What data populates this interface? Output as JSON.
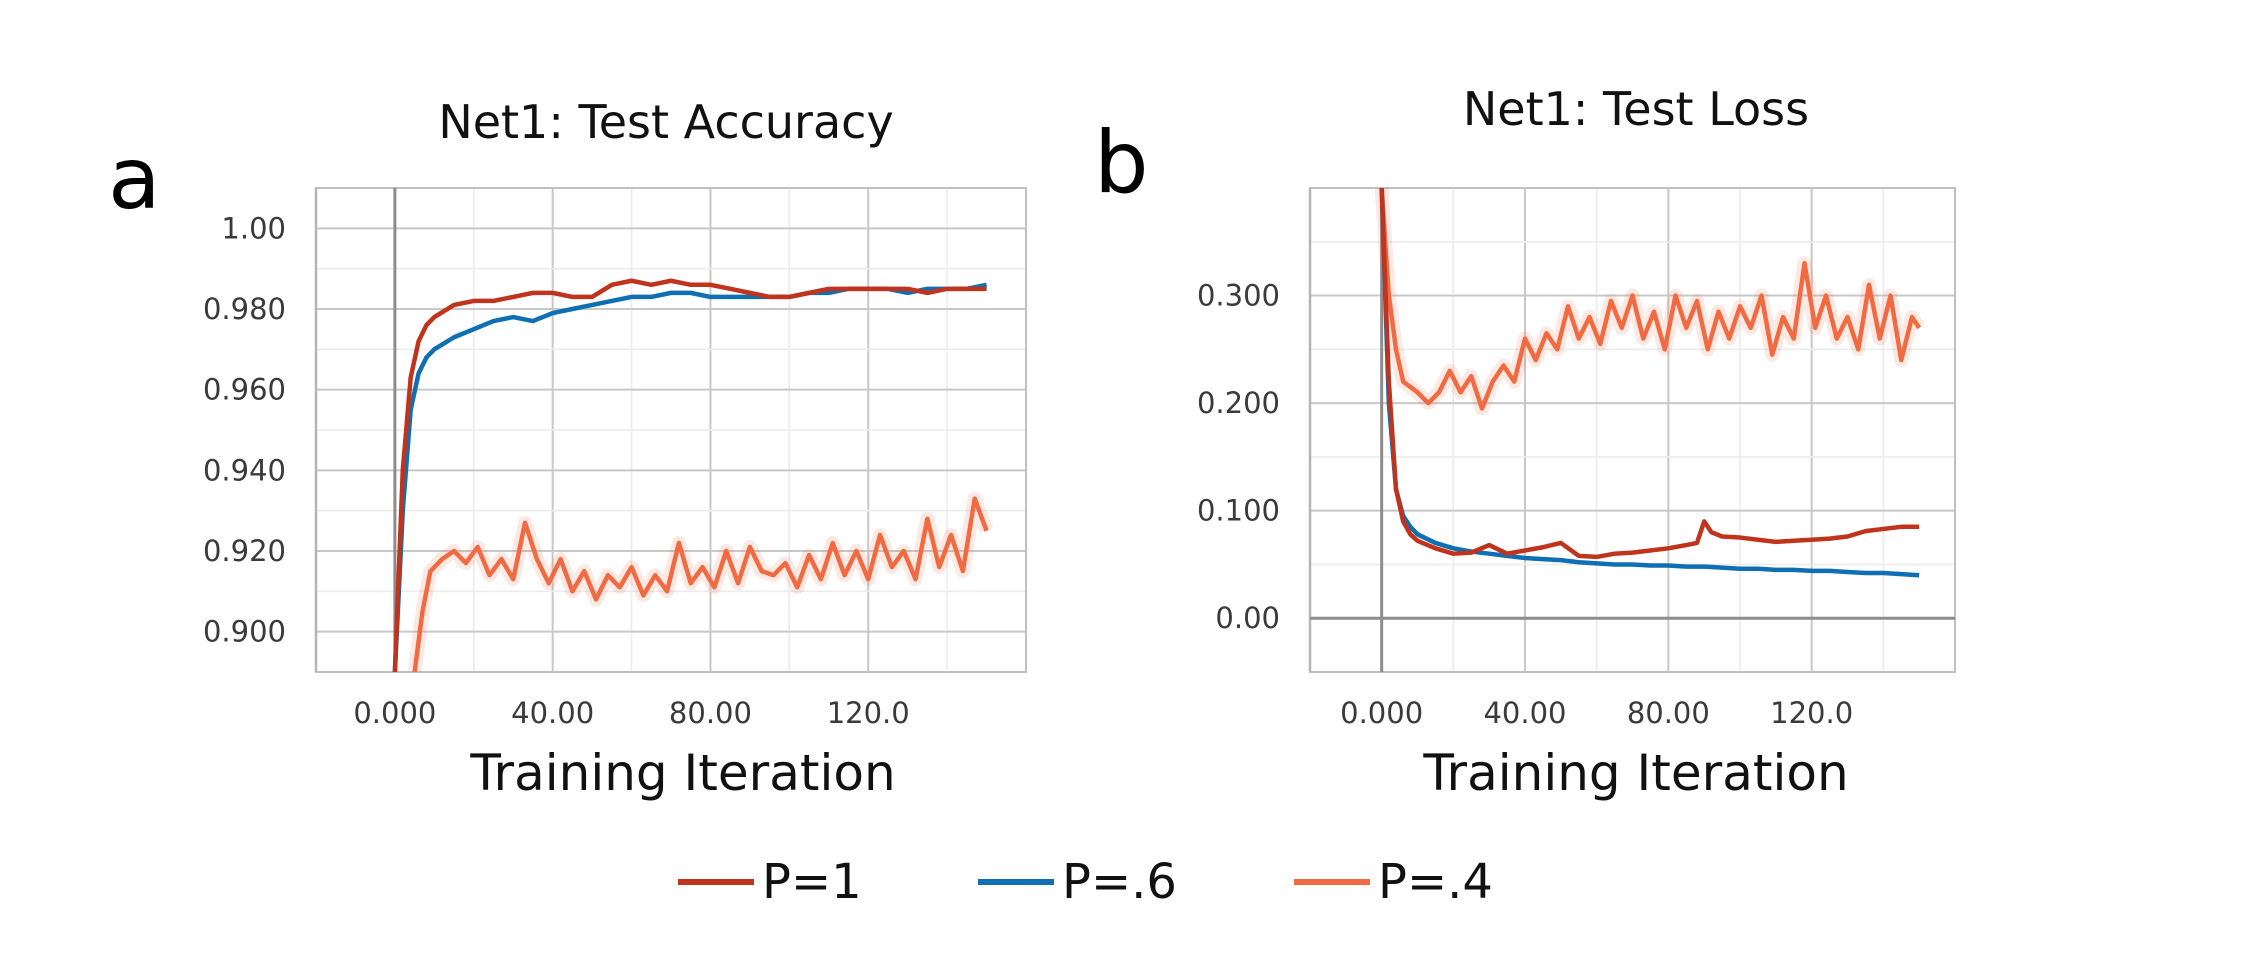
{
  "colors": {
    "p1": "#c0341d",
    "p6": "#0f6fb3",
    "p4": "#f26a41"
  },
  "legend": [
    {
      "label": "P=1",
      "color": "#c0341d"
    },
    {
      "label": "P=.6",
      "color": "#0f6fb3"
    },
    {
      "label": "P=.4",
      "color": "#f26a41"
    }
  ],
  "chart_data": [
    {
      "type": "line",
      "panel_label": "a",
      "title": "Net1: Test Accuracy",
      "xlabel": "Training Iteration",
      "ylabel": "",
      "xlim": [
        -20,
        160
      ],
      "ylim": [
        0.89,
        1.01
      ],
      "x_ticks": [
        0,
        40,
        80,
        120
      ],
      "x_tick_labels": [
        "0.000",
        "40.00",
        "80.00",
        "120.0"
      ],
      "y_ticks": [
        0.9,
        0.92,
        0.94,
        0.96,
        0.98,
        1.0
      ],
      "y_tick_labels": [
        "0.900",
        "0.920",
        "0.940",
        "0.960",
        "0.980",
        "1.00"
      ],
      "grid": true,
      "series": [
        {
          "name": "P=1",
          "color": "#c0341d",
          "x": [
            0,
            2,
            4,
            6,
            8,
            10,
            15,
            20,
            25,
            30,
            35,
            40,
            45,
            50,
            55,
            60,
            65,
            70,
            75,
            80,
            85,
            90,
            95,
            100,
            105,
            110,
            115,
            120,
            125,
            130,
            135,
            140,
            145,
            150
          ],
          "y": [
            0.89,
            0.94,
            0.963,
            0.972,
            0.976,
            0.978,
            0.981,
            0.982,
            0.982,
            0.983,
            0.984,
            0.984,
            0.983,
            0.983,
            0.986,
            0.987,
            0.986,
            0.987,
            0.986,
            0.986,
            0.985,
            0.984,
            0.983,
            0.983,
            0.984,
            0.985,
            0.985,
            0.985,
            0.985,
            0.985,
            0.984,
            0.985,
            0.985,
            0.985
          ]
        },
        {
          "name": "P=.6",
          "color": "#0f6fb3",
          "x": [
            0,
            2,
            4,
            6,
            8,
            10,
            15,
            20,
            25,
            30,
            35,
            40,
            45,
            50,
            55,
            60,
            65,
            70,
            75,
            80,
            85,
            90,
            95,
            100,
            105,
            110,
            115,
            120,
            125,
            130,
            135,
            140,
            145,
            150
          ],
          "y": [
            0.89,
            0.93,
            0.955,
            0.964,
            0.968,
            0.97,
            0.973,
            0.975,
            0.977,
            0.978,
            0.977,
            0.979,
            0.98,
            0.981,
            0.982,
            0.983,
            0.983,
            0.984,
            0.984,
            0.983,
            0.983,
            0.983,
            0.983,
            0.983,
            0.984,
            0.984,
            0.985,
            0.985,
            0.985,
            0.984,
            0.985,
            0.985,
            0.985,
            0.986
          ]
        },
        {
          "name": "P=.4",
          "color": "#f26a41",
          "x": [
            5,
            7,
            9,
            12,
            15,
            18,
            21,
            24,
            27,
            30,
            33,
            36,
            39,
            42,
            45,
            48,
            51,
            54,
            57,
            60,
            63,
            66,
            69,
            72,
            75,
            78,
            81,
            84,
            87,
            90,
            93,
            96,
            99,
            102,
            105,
            108,
            111,
            114,
            117,
            120,
            123,
            126,
            129,
            132,
            135,
            138,
            141,
            144,
            147,
            150
          ],
          "y": [
            0.89,
            0.905,
            0.915,
            0.918,
            0.92,
            0.917,
            0.921,
            0.914,
            0.918,
            0.913,
            0.927,
            0.918,
            0.912,
            0.918,
            0.91,
            0.915,
            0.908,
            0.914,
            0.911,
            0.916,
            0.909,
            0.914,
            0.91,
            0.922,
            0.912,
            0.916,
            0.911,
            0.92,
            0.912,
            0.921,
            0.915,
            0.914,
            0.917,
            0.911,
            0.919,
            0.913,
            0.922,
            0.914,
            0.92,
            0.913,
            0.924,
            0.916,
            0.92,
            0.913,
            0.928,
            0.916,
            0.924,
            0.915,
            0.933,
            0.925
          ]
        }
      ]
    },
    {
      "type": "line",
      "panel_label": "b",
      "title": "Net1: Test Loss",
      "xlabel": "Training Iteration",
      "ylabel": "",
      "xlim": [
        -20,
        160
      ],
      "ylim": [
        -0.05,
        0.4
      ],
      "x_ticks": [
        0,
        40,
        80,
        120
      ],
      "x_tick_labels": [
        "0.000",
        "40.00",
        "80.00",
        "120.0"
      ],
      "y_ticks": [
        0.0,
        0.1,
        0.2,
        0.3
      ],
      "y_tick_labels": [
        "0.00",
        "0.100",
        "0.200",
        "0.300"
      ],
      "grid": true,
      "series": [
        {
          "name": "P=1",
          "color": "#c0341d",
          "x": [
            0,
            2,
            4,
            6,
            8,
            10,
            15,
            20,
            25,
            30,
            35,
            40,
            45,
            50,
            55,
            60,
            65,
            70,
            75,
            80,
            85,
            88,
            90,
            92,
            95,
            100,
            105,
            110,
            115,
            120,
            125,
            130,
            135,
            140,
            145,
            150
          ],
          "y": [
            0.4,
            0.22,
            0.12,
            0.09,
            0.078,
            0.072,
            0.065,
            0.06,
            0.061,
            0.068,
            0.06,
            0.063,
            0.066,
            0.07,
            0.058,
            0.057,
            0.06,
            0.061,
            0.063,
            0.065,
            0.068,
            0.07,
            0.09,
            0.08,
            0.076,
            0.075,
            0.073,
            0.071,
            0.072,
            0.073,
            0.074,
            0.076,
            0.081,
            0.083,
            0.085,
            0.085
          ]
        },
        {
          "name": "P=.6",
          "color": "#0f6fb3",
          "x": [
            0,
            2,
            4,
            6,
            8,
            10,
            15,
            20,
            25,
            30,
            35,
            40,
            45,
            50,
            55,
            60,
            65,
            70,
            75,
            80,
            85,
            90,
            95,
            100,
            105,
            110,
            115,
            120,
            125,
            130,
            135,
            140,
            145,
            150
          ],
          "y": [
            0.4,
            0.2,
            0.12,
            0.095,
            0.085,
            0.078,
            0.07,
            0.065,
            0.062,
            0.06,
            0.058,
            0.056,
            0.055,
            0.054,
            0.052,
            0.051,
            0.05,
            0.05,
            0.049,
            0.049,
            0.048,
            0.048,
            0.047,
            0.046,
            0.046,
            0.045,
            0.045,
            0.044,
            0.044,
            0.043,
            0.042,
            0.042,
            0.041,
            0.04
          ]
        },
        {
          "name": "P=.4",
          "color": "#f26a41",
          "x": [
            0,
            2,
            4,
            6,
            8,
            10,
            13,
            16,
            19,
            22,
            25,
            28,
            31,
            34,
            37,
            40,
            43,
            46,
            49,
            52,
            55,
            58,
            61,
            64,
            67,
            70,
            73,
            76,
            79,
            82,
            85,
            88,
            91,
            94,
            97,
            100,
            103,
            106,
            109,
            112,
            115,
            118,
            121,
            124,
            127,
            130,
            133,
            136,
            139,
            142,
            145,
            148,
            150
          ],
          "y": [
            0.4,
            0.3,
            0.25,
            0.22,
            0.215,
            0.21,
            0.2,
            0.21,
            0.23,
            0.21,
            0.225,
            0.195,
            0.22,
            0.235,
            0.22,
            0.26,
            0.24,
            0.265,
            0.25,
            0.29,
            0.26,
            0.28,
            0.255,
            0.295,
            0.27,
            0.3,
            0.26,
            0.285,
            0.25,
            0.3,
            0.27,
            0.295,
            0.25,
            0.285,
            0.26,
            0.29,
            0.27,
            0.3,
            0.245,
            0.28,
            0.26,
            0.33,
            0.27,
            0.3,
            0.26,
            0.28,
            0.25,
            0.31,
            0.26,
            0.3,
            0.24,
            0.28,
            0.27
          ]
        }
      ]
    }
  ]
}
